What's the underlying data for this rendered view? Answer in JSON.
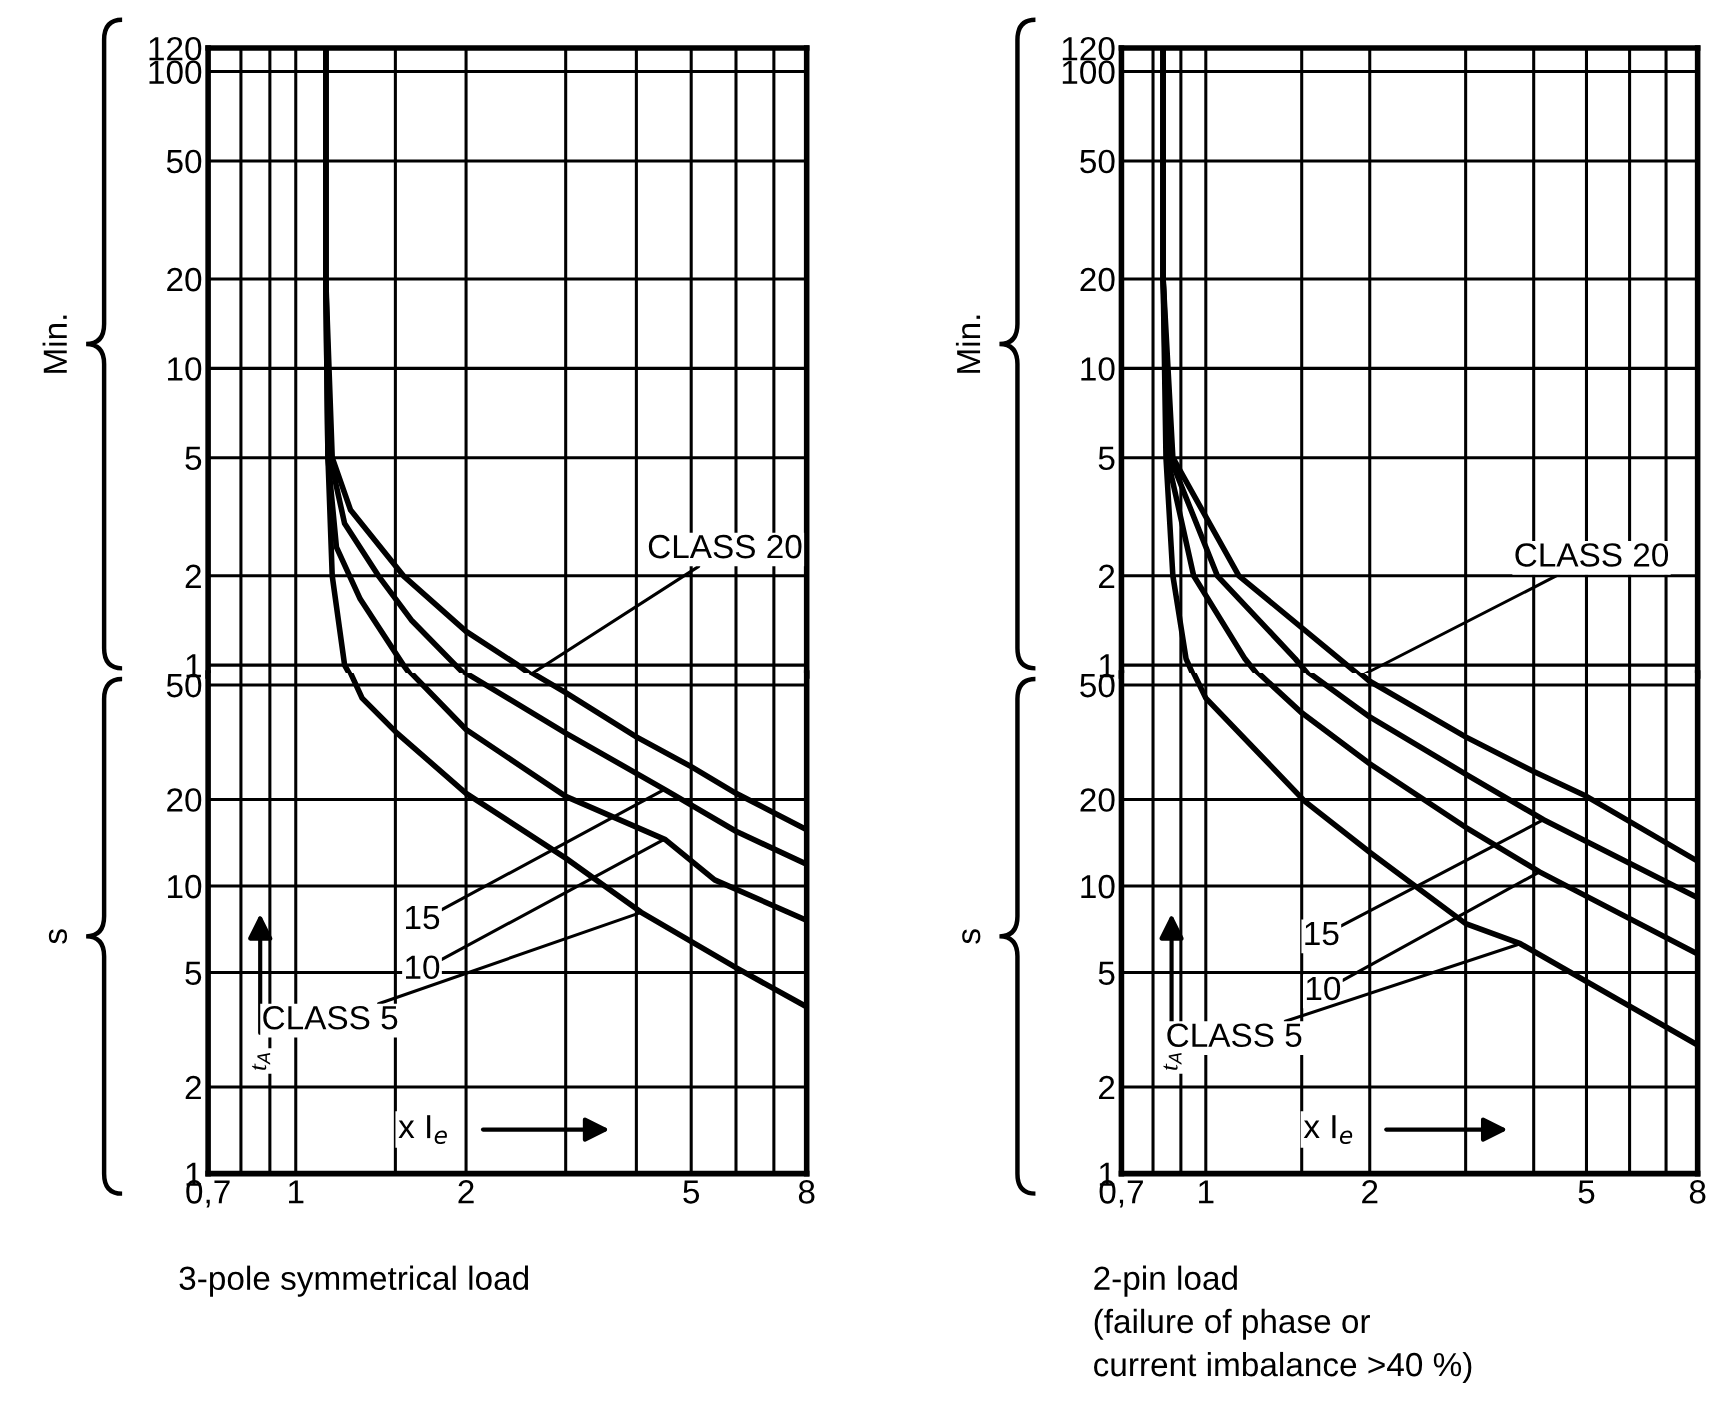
{
  "chart_data": [
    {
      "type": "line",
      "log": "xy",
      "grid": true,
      "tick_labels": "y",
      "xlim": [
        0.7,
        8
      ],
      "ylim": [
        0.92,
        120
      ],
      "xticks": [
        {
          "value": 0.7,
          "label": null
        },
        {
          "value": 0.8,
          "label": null
        },
        {
          "value": 0.9,
          "label": null
        },
        {
          "value": 1,
          "label": null
        },
        {
          "value": 1.5,
          "label": null
        },
        {
          "value": 2,
          "label": null
        },
        {
          "value": 3,
          "label": null
        },
        {
          "value": 4,
          "label": null
        },
        {
          "value": 5,
          "label": null
        },
        {
          "value": 6,
          "label": null
        },
        {
          "value": 7,
          "label": null
        },
        {
          "value": 8,
          "label": null
        }
      ],
      "yticks": [
        1,
        2,
        5,
        10,
        20,
        50,
        100,
        120
      ],
      "series": [
        {
          "color": "#000000",
          "x": [
            1.13,
            1.13,
            1.16,
            1.25,
            1.55,
            2,
            2.47,
            2.62
          ],
          "values": [
            120,
            20,
            5,
            3.33,
            2,
            1.3,
            1,
            0.92
          ]
        },
        {
          "color": "#000000",
          "x": [
            1.13,
            1.13,
            1.15,
            1.22,
            1.4,
            1.6,
            2
          ],
          "values": [
            120,
            20,
            5,
            3,
            2,
            1.42,
            0.92
          ]
        },
        {
          "color": "#000000",
          "x": [
            1.13,
            1.13,
            1.14,
            1.18,
            1.3,
            1.55,
            1.6
          ],
          "values": [
            120,
            20,
            5,
            2.5,
            1.67,
            1,
            0.92
          ]
        },
        {
          "color": "#000000",
          "x": [
            1.13,
            1.13,
            1.14,
            1.16,
            1.22,
            1.25
          ],
          "values": [
            120,
            20,
            5,
            2,
            1,
            0.92
          ]
        }
      ],
      "annotations": [
        "Min.",
        {
          "text": "CLASS 20",
          "x": 2.6,
          "y": 0.93
        }
      ]
    },
    {
      "type": "line",
      "title": "3-pole symmetrical load",
      "xlabel": "x I$_{e}$",
      "ylabel": "t$_{A}$",
      "log": "xy",
      "grid": true,
      "xlim": [
        0.7,
        8
      ],
      "ylim": [
        1,
        55
      ],
      "xticks": [
        {
          "value": 0.7,
          "label": "0,7"
        },
        {
          "value": 0.8,
          "label": null
        },
        {
          "value": 0.9,
          "label": null
        },
        1,
        {
          "value": 1.5,
          "label": null
        },
        2,
        {
          "value": 3,
          "label": null
        },
        {
          "value": 4,
          "label": null
        },
        5,
        {
          "value": 6,
          "label": null
        },
        {
          "value": 7,
          "label": null
        },
        8
      ],
      "yticks": [
        1,
        2,
        5,
        10,
        20,
        50
      ],
      "series": [
        {
          "color": "#000000",
          "x": [
            2.62,
            3,
            4,
            5,
            6,
            8
          ],
          "values": [
            55,
            47,
            33,
            26,
            21,
            15.7
          ]
        },
        {
          "color": "#000000",
          "x": [
            2,
            3,
            4.5,
            6,
            8
          ],
          "values": [
            55,
            34,
            21.6,
            15.5,
            11.9
          ]
        },
        {
          "color": "#000000",
          "x": [
            1.6,
            2,
            3,
            4.5,
            5.5,
            8
          ],
          "values": [
            55,
            35,
            20.5,
            14.5,
            10.5,
            7.6
          ]
        },
        {
          "color": "#000000",
          "x": [
            1.25,
            1.31,
            1.51,
            2,
            3,
            4.08,
            6,
            8
          ],
          "values": [
            55,
            45,
            34,
            21,
            12.5,
            8.1,
            5.2,
            3.8
          ]
        }
      ],
      "annotations": [
        "s",
        {
          "text": "15",
          "x": 4.47,
          "y": 21.6
        },
        {
          "text": "10",
          "x": 4.47,
          "y": 14.5
        },
        {
          "text": "CLASS 5",
          "x": 4.08,
          "y": 8.1
        }
      ]
    },
    {
      "type": "line",
      "log": "xy",
      "grid": true,
      "tick_labels": "y",
      "xlim": [
        0.7,
        8
      ],
      "ylim": [
        0.92,
        120
      ],
      "xticks": [
        {
          "value": 0.7,
          "label": null
        },
        {
          "value": 0.8,
          "label": null
        },
        {
          "value": 0.9,
          "label": null
        },
        {
          "value": 1,
          "label": null
        },
        {
          "value": 1.5,
          "label": null
        },
        {
          "value": 2,
          "label": null
        },
        {
          "value": 3,
          "label": null
        },
        {
          "value": 4,
          "label": null
        },
        {
          "value": 5,
          "label": null
        },
        {
          "value": 6,
          "label": null
        },
        {
          "value": 7,
          "label": null
        },
        {
          "value": 8,
          "label": null
        }
      ],
      "yticks": [
        1,
        2,
        5,
        10,
        20,
        50,
        100,
        120
      ],
      "series": [
        {
          "color": "#000000",
          "x": [
            0.835,
            0.835,
            0.87,
            1.15,
            1.92
          ],
          "values": [
            120,
            20,
            5,
            2,
            0.92
          ]
        },
        {
          "color": "#000000",
          "x": [
            0.835,
            0.835,
            0.86,
            1.05,
            1.46,
            1.55
          ],
          "values": [
            120,
            20,
            5,
            2,
            1.05,
            0.92
          ]
        },
        {
          "color": "#000000",
          "x": [
            0.835,
            0.835,
            0.85,
            0.95,
            1.18,
            1.25
          ],
          "values": [
            120,
            20,
            5,
            2,
            1.05,
            0.92
          ]
        },
        {
          "color": "#000000",
          "x": [
            0.835,
            0.835,
            0.845,
            0.87,
            0.92,
            0.95
          ],
          "values": [
            120,
            20,
            5,
            2,
            1.05,
            0.92
          ]
        }
      ],
      "annotations": [
        "Min.",
        {
          "text": "CLASS 20",
          "x": 1.95,
          "y": 0.93
        }
      ]
    },
    {
      "type": "line",
      "title": "2-pin load\n(failure of phase or\ncurrent imbalance >40 %)",
      "xlabel": "x I$_{e}$",
      "ylabel": "t$_{A}$",
      "log": "xy",
      "grid": true,
      "xlim": [
        0.7,
        8
      ],
      "ylim": [
        1,
        55
      ],
      "xticks": [
        {
          "value": 0.7,
          "label": "0,7"
        },
        {
          "value": 0.8,
          "label": null
        },
        {
          "value": 0.9,
          "label": null
        },
        1,
        {
          "value": 1.5,
          "label": null
        },
        2,
        {
          "value": 3,
          "label": null
        },
        {
          "value": 4,
          "label": null
        },
        5,
        {
          "value": 6,
          "label": null
        },
        {
          "value": 7,
          "label": null
        },
        8
      ],
      "yticks": [
        1,
        2,
        5,
        10,
        20,
        50
      ],
      "series": [
        {
          "color": "#000000",
          "x": [
            1.92,
            2,
            3,
            4,
            5,
            8
          ],
          "values": [
            55,
            51.5,
            33,
            25,
            20.5,
            12.2
          ]
        },
        {
          "color": "#000000",
          "x": [
            1.55,
            2,
            3,
            4.17,
            8
          ],
          "values": [
            55,
            38.7,
            24.5,
            17,
            9.1
          ]
        },
        {
          "color": "#000000",
          "x": [
            1.25,
            1.5,
            2,
            3,
            4.1,
            8
          ],
          "values": [
            55,
            40,
            26.6,
            16,
            11.2,
            5.8
          ]
        },
        {
          "color": "#000000",
          "x": [
            0.95,
            1.0,
            1.52,
            2,
            3,
            3.78,
            8
          ],
          "values": [
            55,
            45,
            19.7,
            13.1,
            7.4,
            6.3,
            2.8
          ]
        }
      ],
      "annotations": [
        "s",
        {
          "text": "15",
          "x": 4.17,
          "y": 17
        },
        {
          "text": "10",
          "x": 4.1,
          "y": 11.2
        },
        {
          "text": "CLASS 5",
          "x": 3.78,
          "y": 6.3
        }
      ]
    }
  ]
}
